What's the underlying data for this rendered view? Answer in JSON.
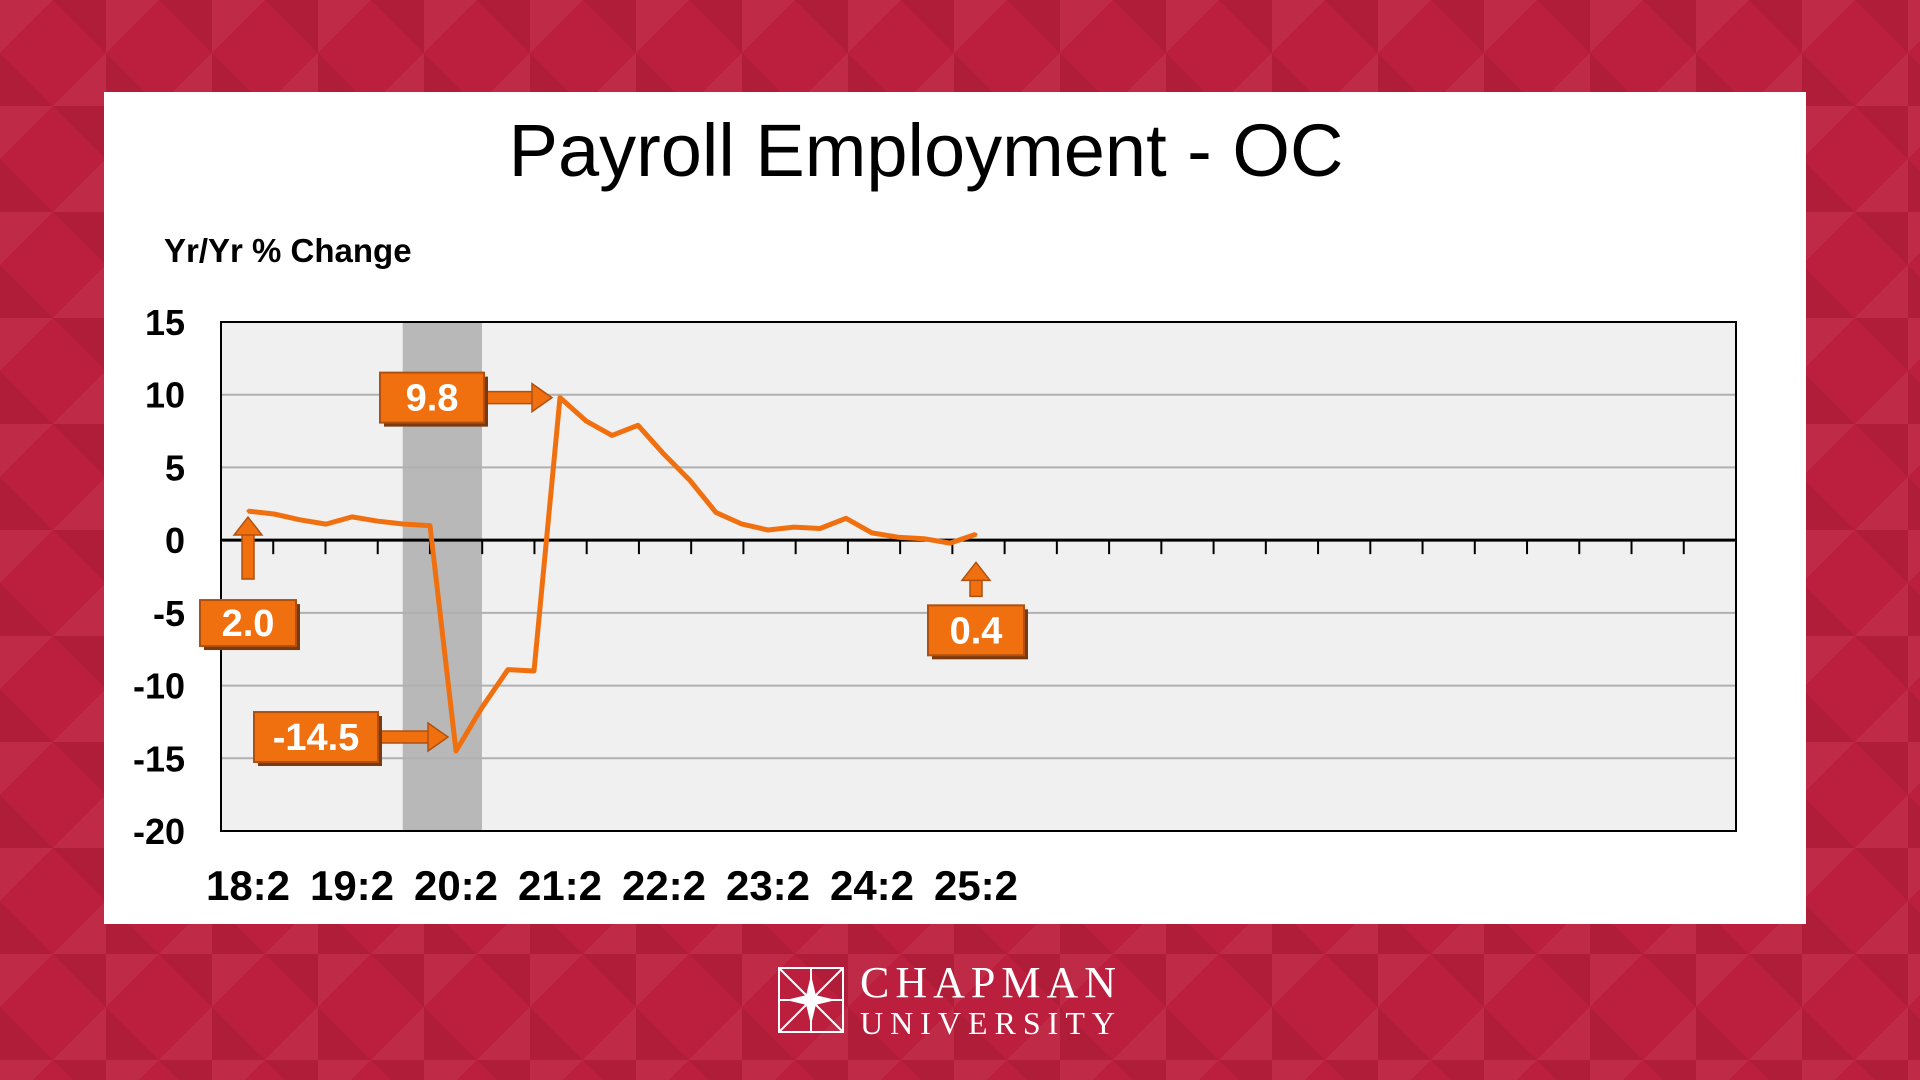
{
  "slide": {
    "logo": {
      "line1": "CHAPMAN",
      "line2": "UNIVERSITY",
      "icon": "chapman-starburst-logo"
    },
    "colors": {
      "background": "#bc1f3d",
      "line": "#f07010",
      "callout_fill": "#f07010",
      "plot_bg": "#f0f0f0",
      "recession_band": "#b8b8b8"
    }
  },
  "chart_data": {
    "type": "line",
    "title": "Payroll Employment - OC",
    "ylabel": "Yr/Yr % Change",
    "xlabel": "",
    "ylim": [
      -20,
      15
    ],
    "yticks": [
      15,
      10,
      5,
      0,
      -5,
      -10,
      -15,
      -20
    ],
    "x_tick_labels": [
      "18:2",
      "19:2",
      "20:2",
      "21:2",
      "22:2",
      "23:2",
      "24:2",
      "25:2"
    ],
    "grid": true,
    "recession_shading": {
      "start": "19:4",
      "end": "20:2"
    },
    "series": [
      {
        "x": [
          "18:2",
          "18:3",
          "18:4",
          "19:1",
          "19:2",
          "19:3",
          "19:4",
          "20:1",
          "20:2",
          "20:3",
          "20:4",
          "21:1",
          "21:2",
          "21:3",
          "21:4",
          "22:1",
          "22:2",
          "22:3",
          "22:4",
          "23:1",
          "23:2",
          "23:3",
          "23:4",
          "24:1",
          "24:2",
          "24:3",
          "24:4",
          "25:1",
          "25:2"
        ],
        "values": [
          2.0,
          1.8,
          1.4,
          1.1,
          1.6,
          1.3,
          1.1,
          1.0,
          -14.5,
          -11.5,
          -8.9,
          -9.0,
          9.8,
          8.2,
          7.2,
          7.9,
          5.9,
          4.1,
          1.9,
          1.1,
          0.7,
          0.9,
          0.8,
          1.5,
          0.5,
          0.2,
          0.1,
          -0.2,
          0.4
        ]
      }
    ],
    "callouts": [
      {
        "label": "2.0",
        "at": "18:2",
        "value": 2.0
      },
      {
        "label": "-14.5",
        "at": "20:2",
        "value": -14.5
      },
      {
        "label": "9.8",
        "at": "21:2",
        "value": 9.8
      },
      {
        "label": "0.4",
        "at": "25:2",
        "value": 0.4
      }
    ]
  }
}
